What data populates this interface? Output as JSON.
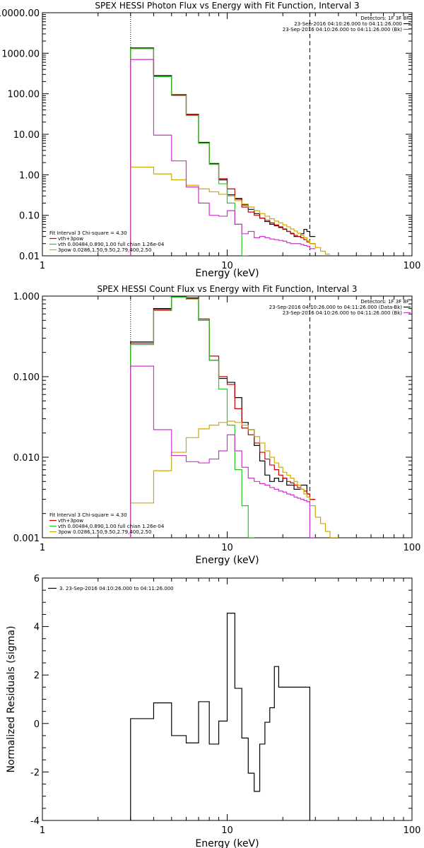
{
  "chart_data": [
    {
      "type": "line",
      "step": true,
      "title": "SPEX HESSI Photon Flux vs Energy with Fit Function, Interval 3",
      "xlabel": "Energy (keV)",
      "ylabel": "",
      "xscale": "log",
      "yscale": "log",
      "xlim": [
        1,
        100
      ],
      "ylim": [
        0.01,
        10000
      ],
      "xticks": [
        {
          "v": 1,
          "label": "1"
        },
        {
          "v": 10,
          "label": "10"
        },
        {
          "v": 100,
          "label": "100"
        }
      ],
      "yticks": [
        {
          "v": 0.01,
          "label": "0.01"
        },
        {
          "v": 0.1,
          "label": "0.10"
        },
        {
          "v": 1,
          "label": "1.00"
        },
        {
          "v": 10,
          "label": "10.00"
        },
        {
          "v": 100,
          "label": "100.00"
        },
        {
          "v": 1000,
          "label": "1000.00"
        },
        {
          "v": 10000,
          "label": "10000.00"
        }
      ],
      "grid": false,
      "vlines": [
        {
          "x": 3,
          "style": "dotted"
        },
        {
          "x": 28,
          "style": "dashed"
        }
      ],
      "edges": [
        3,
        4,
        5,
        6,
        7,
        8,
        9,
        10,
        11,
        12,
        13,
        14,
        15,
        16,
        17,
        18,
        19,
        20,
        21,
        22,
        23,
        24,
        25,
        26,
        27,
        28,
        30,
        32,
        34,
        36
      ],
      "legend_top": {
        "position": "top-right",
        "header": "Detectors: 1F 3F 8F",
        "entries": [
          {
            "text": "23-Sep-2016 04:10:26.000 to 04:11:26.000",
            "color": "#000000"
          },
          {
            "text": "23-Sep-2016 04:10:26.000 to 04:11:26.000 (Bk)",
            "color": "#cc33cc"
          }
        ]
      },
      "legend_bottom": {
        "position": "bottom-left",
        "header": "Fit Interval 3   Chi-square = 4.30",
        "entries": [
          {
            "text": "vth+3pow",
            "color": "#cc0000"
          },
          {
            "text": "vth 0.00484,0.890,1.00  full chian 1.26e-04",
            "color": "#22cc22"
          },
          {
            "text": "3pow 0.0286,1.50,9.50,2.79,400,2.50",
            "color": "#ccaa00"
          }
        ]
      },
      "series": [
        {
          "color": "#000000",
          "values": [
            1350,
            280,
            95,
            31,
            6.3,
            1.9,
            0.75,
            0.32,
            0.26,
            0.18,
            0.14,
            0.11,
            0.085,
            0.07,
            0.06,
            0.055,
            0.05,
            0.045,
            0.04,
            0.035,
            0.03,
            0.03,
            0.035,
            0.045,
            0.04,
            0.03,
            null,
            null,
            null
          ]
        },
        {
          "color": "#cc0000",
          "values": [
            1300,
            270,
            92,
            30,
            6.1,
            1.85,
            0.8,
            0.45,
            0.25,
            0.16,
            0.12,
            0.1,
            0.085,
            0.075,
            0.065,
            0.058,
            0.052,
            0.046,
            0.04,
            0.036,
            0.032,
            0.03,
            0.028,
            0.025,
            0.022,
            0.02,
            null,
            null,
            null
          ]
        },
        {
          "color": "#22cc22",
          "values": [
            1300,
            265,
            90,
            29,
            6.0,
            1.8,
            0.6,
            0.2,
            0.06,
            0.008,
            null,
            null,
            null,
            null,
            null,
            null,
            null,
            null,
            null,
            null,
            null,
            null,
            null,
            null,
            null,
            null,
            null,
            null,
            null
          ]
        },
        {
          "color": "#ccaa00",
          "values": [
            1.55,
            1.05,
            0.75,
            0.55,
            0.45,
            0.38,
            0.33,
            0.3,
            0.23,
            0.19,
            0.16,
            0.13,
            0.11,
            0.095,
            0.082,
            0.072,
            0.065,
            0.058,
            0.052,
            0.046,
            0.041,
            0.036,
            0.032,
            0.028,
            0.024,
            0.02,
            0.016,
            0.013,
            0.011
          ]
        },
        {
          "color": "#cc33cc",
          "values": [
            700,
            9.5,
            2.2,
            0.5,
            0.2,
            0.1,
            0.095,
            0.13,
            0.06,
            0.035,
            0.04,
            0.028,
            0.03,
            0.028,
            0.026,
            0.025,
            0.024,
            0.023,
            0.021,
            0.02,
            0.02,
            0.02,
            0.019,
            0.018,
            0.017,
            0.015,
            null,
            null,
            null
          ]
        }
      ]
    },
    {
      "type": "line",
      "step": true,
      "title": "SPEX HESSI Count Flux vs Energy with Fit Function, Interval 3",
      "xlabel": "Energy (keV)",
      "ylabel": "",
      "xscale": "log",
      "yscale": "log",
      "xlim": [
        1,
        100
      ],
      "ylim": [
        0.001,
        1.0
      ],
      "xticks": [
        {
          "v": 1,
          "label": "1"
        },
        {
          "v": 10,
          "label": "10"
        },
        {
          "v": 100,
          "label": "100"
        }
      ],
      "yticks": [
        {
          "v": 0.001,
          "label": "0.001"
        },
        {
          "v": 0.01,
          "label": "0.010"
        },
        {
          "v": 0.1,
          "label": "0.100"
        },
        {
          "v": 1,
          "label": "1.000"
        }
      ],
      "grid": false,
      "vlines": [
        {
          "x": 3,
          "style": "dotted"
        },
        {
          "x": 28,
          "style": "dashed"
        }
      ],
      "edges": [
        3,
        4,
        5,
        6,
        7,
        8,
        9,
        10,
        11,
        12,
        13,
        14,
        15,
        16,
        17,
        18,
        19,
        20,
        21,
        22,
        23,
        24,
        25,
        26,
        27,
        28,
        30,
        32,
        34,
        36,
        38,
        40
      ],
      "legend_top": {
        "position": "top-right",
        "header": "Detectors: 1F 3F 8F",
        "entries": [
          {
            "text": "23-Sep-2016 04:10:26.000 to 04:11:26.000 (Data-Bk)",
            "color": "#000000"
          },
          {
            "text": "23-Sep-2016 04:10:26.000 to 04:11:26.000 (Bk)",
            "color": "#cc33cc"
          }
        ]
      },
      "legend_bottom": {
        "position": "bottom-left",
        "header": "Fit Interval 3   Chi-square = 4.30",
        "entries": [
          {
            "text": "vth+3pow",
            "color": "#cc0000"
          },
          {
            "text": "vth 0.00484,0.890,1.00  full chian 1.26e-04",
            "color": "#22cc22"
          },
          {
            "text": "3pow 0.0286,1.50,9.50,2.79,400,2.50",
            "color": "#ccaa00"
          }
        ]
      },
      "series": [
        {
          "color": "#000000",
          "values": [
            0.27,
            0.7,
            1.0,
            0.95,
            0.5,
            0.16,
            0.095,
            0.085,
            0.055,
            0.027,
            0.022,
            0.014,
            0.009,
            0.006,
            0.005,
            0.0055,
            0.005,
            0.0055,
            0.0045,
            0.0045,
            0.004,
            0.004,
            0.0045,
            0.0045,
            0.0035,
            0.003,
            null,
            null,
            null,
            null,
            null
          ]
        },
        {
          "color": "#cc0000",
          "values": [
            0.26,
            0.68,
            0.98,
            0.93,
            0.52,
            0.18,
            0.1,
            0.08,
            0.04,
            0.023,
            0.019,
            0.015,
            0.0115,
            0.0095,
            0.008,
            0.007,
            0.006,
            0.0055,
            0.005,
            0.0048,
            0.0045,
            0.0042,
            0.004,
            0.0038,
            0.0035,
            0.003,
            null,
            null,
            null,
            null,
            null
          ]
        },
        {
          "color": "#22cc22",
          "values": [
            0.25,
            0.66,
            0.97,
            0.92,
            0.5,
            0.16,
            0.07,
            0.025,
            0.007,
            0.0025,
            0.00045,
            null,
            null,
            null,
            null,
            null,
            null,
            null,
            null,
            null,
            null,
            null,
            null,
            null,
            null,
            null,
            null,
            null,
            null,
            null,
            null
          ]
        },
        {
          "color": "#ccaa00",
          "values": [
            0.0027,
            0.0068,
            0.0115,
            0.0175,
            0.0225,
            0.025,
            0.027,
            0.028,
            0.027,
            0.025,
            0.022,
            0.018,
            0.015,
            0.012,
            0.01,
            0.0085,
            0.0075,
            0.0065,
            0.006,
            0.0055,
            0.005,
            0.0045,
            0.004,
            0.0035,
            0.0032,
            0.0025,
            0.0018,
            0.0015,
            0.0012,
            0.001,
            0.0009
          ]
        },
        {
          "color": "#cc33cc",
          "values": [
            0.135,
            0.022,
            0.0105,
            0.0088,
            0.0085,
            0.0095,
            0.012,
            0.019,
            0.012,
            0.0075,
            0.0055,
            0.005,
            0.0047,
            0.0045,
            0.0042,
            0.004,
            0.0038,
            0.0037,
            0.0035,
            0.0034,
            0.0032,
            0.0031,
            0.003,
            0.0029,
            0.0028,
            0.0008,
            null,
            null,
            null,
            null,
            null
          ]
        }
      ]
    },
    {
      "type": "line",
      "step": true,
      "title": "",
      "xlabel": "Energy (keV)",
      "ylabel": "Normalized Residuals (sigma)",
      "xscale": "log",
      "yscale": "linear",
      "xlim": [
        1,
        100
      ],
      "ylim": [
        -4,
        6
      ],
      "xticks": [
        {
          "v": 1,
          "label": "1"
        },
        {
          "v": 10,
          "label": "10"
        },
        {
          "v": 100,
          "label": "100"
        }
      ],
      "yticks": [
        {
          "v": -4,
          "label": "-4"
        },
        {
          "v": -2,
          "label": "-2"
        },
        {
          "v": 0,
          "label": "0"
        },
        {
          "v": 2,
          "label": "2"
        },
        {
          "v": 4,
          "label": "4"
        },
        {
          "v": 6,
          "label": "6"
        }
      ],
      "grid": false,
      "vlines": [],
      "edges": [
        3,
        4,
        5,
        6,
        7,
        8,
        9,
        10,
        11,
        12,
        13,
        14,
        15,
        16,
        17,
        18,
        19,
        20,
        21,
        22,
        23,
        24,
        25,
        26,
        27,
        28
      ],
      "drop_ends_to": -4,
      "legend_top": {
        "position": "top-left",
        "header": "",
        "entries": [
          {
            "text": "3. 23-Sep-2016 04:10:26.000 to 04:11:26.000",
            "color": "#000000"
          }
        ]
      },
      "series": [
        {
          "color": "#000000",
          "values": [
            0.2,
            0.85,
            -0.5,
            -0.8,
            0.9,
            -0.85,
            0.1,
            4.55,
            1.45,
            -0.6,
            -2.05,
            -2.8,
            -0.85,
            0.05,
            0.65,
            2.35,
            1.5,
            1.5,
            1.5,
            1.5,
            1.5,
            1.5,
            1.5,
            1.5,
            1.5
          ]
        }
      ]
    }
  ]
}
